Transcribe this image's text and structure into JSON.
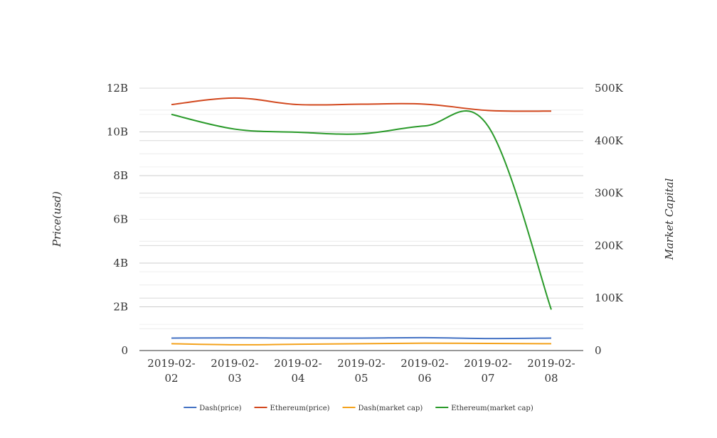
{
  "chart_data": {
    "type": "line",
    "title": "",
    "categories": [
      "2019-02-02",
      "2019-02-03",
      "2019-02-04",
      "2019-02-05",
      "2019-02-06",
      "2019-02-07",
      "2019-02-08"
    ],
    "category_lines": [
      [
        "2019-02-",
        "02"
      ],
      [
        "2019-02-",
        "03"
      ],
      [
        "2019-02-",
        "04"
      ],
      [
        "2019-02-",
        "05"
      ],
      [
        "2019-02-",
        "06"
      ],
      [
        "2019-02-",
        "07"
      ],
      [
        "2019-02-",
        "08"
      ]
    ],
    "y_left": {
      "label": "Price(usd)",
      "ticks": [
        0,
        2000000000,
        4000000000,
        6000000000,
        8000000000,
        10000000000,
        12000000000
      ],
      "tick_labels": [
        "0",
        "2B",
        "4B",
        "6B",
        "8B",
        "10B",
        "12B"
      ],
      "range": [
        0,
        12000000000
      ]
    },
    "y_right": {
      "label": "Market Capital",
      "ticks": [
        0,
        100000,
        200000,
        300000,
        400000,
        500000
      ],
      "tick_labels": [
        "0",
        "100K",
        "200K",
        "300K",
        "400K",
        "500K"
      ],
      "range": [
        0,
        500000
      ]
    },
    "grid": true,
    "legend_position": "bottom",
    "series": [
      {
        "name": "Dash(price)",
        "axis": "left",
        "color": "#4472c4",
        "values": [
          570000000,
          580000000,
          570000000,
          570000000,
          590000000,
          550000000,
          570000000
        ]
      },
      {
        "name": "Ethereum(price)",
        "axis": "left",
        "color": "#d2481e",
        "values": [
          11250000000,
          11550000000,
          11250000000,
          11270000000,
          11270000000,
          10980000000,
          10950000000
        ]
      },
      {
        "name": "Dash(market cap)",
        "axis": "right",
        "color": "#f4a21c",
        "values": [
          13000,
          11000,
          12000,
          13000,
          14000,
          13500,
          13000
        ]
      },
      {
        "name": "Ethereum(market cap)",
        "axis": "right",
        "color": "#2a9a2a",
        "values": [
          450000,
          422000,
          416000,
          413000,
          428000,
          428000,
          78000
        ]
      }
    ]
  }
}
